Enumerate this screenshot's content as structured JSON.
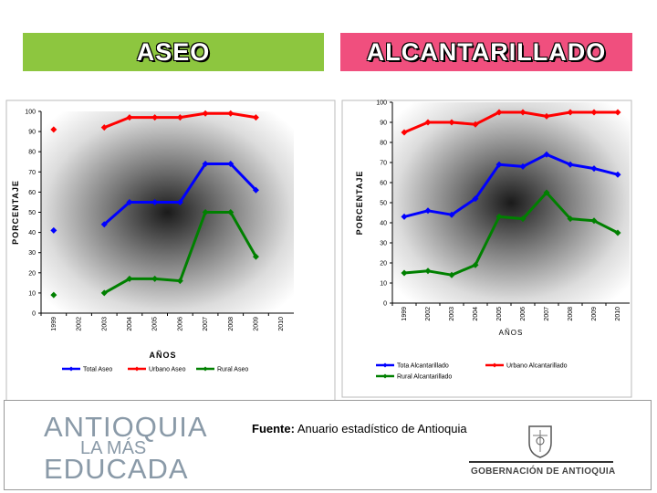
{
  "banners": {
    "left": "ASEO",
    "right": "ALCANTARILLADO"
  },
  "chart_data": [
    {
      "type": "line",
      "title": "ASEO",
      "xlabel": "AÑOS",
      "ylabel": "PORCENTAJE",
      "ylim": [
        0,
        100
      ],
      "yticks": [
        0,
        10,
        20,
        30,
        40,
        50,
        60,
        70,
        80,
        90,
        100
      ],
      "categories": [
        "1999",
        "2002",
        "2003",
        "2004",
        "2005",
        "2006",
        "2007",
        "2008",
        "2009",
        "2010"
      ],
      "series": [
        {
          "name": "Total Aseo",
          "color": "#0000ff",
          "values": [
            41,
            null,
            44,
            55,
            55,
            55,
            74,
            74,
            61,
            null
          ]
        },
        {
          "name": "Urbano Aseo",
          "color": "#ff0000",
          "values": [
            91,
            null,
            92,
            97,
            97,
            97,
            99,
            99,
            97,
            null
          ]
        },
        {
          "name": "Rural Aseo",
          "color": "#008000",
          "values": [
            9,
            null,
            10,
            17,
            17,
            16,
            50,
            50,
            28,
            null
          ]
        }
      ],
      "legend": "bottom"
    },
    {
      "type": "line",
      "title": "ALCANTARILLADO",
      "xlabel": "AÑOS",
      "ylabel": "PORCENTAJE",
      "ylim": [
        0,
        100
      ],
      "yticks": [
        0,
        10,
        20,
        30,
        40,
        50,
        60,
        70,
        80,
        90,
        100
      ],
      "categories": [
        "1999",
        "2002",
        "2003",
        "2004",
        "2005",
        "2006",
        "2007",
        "2008",
        "2009",
        "2010"
      ],
      "series": [
        {
          "name": "Tota Alcantarillado",
          "color": "#0000ff",
          "values": [
            43,
            46,
            44,
            52,
            69,
            68,
            74,
            69,
            67,
            64
          ]
        },
        {
          "name": "Urbano Alcantarillado",
          "color": "#ff0000",
          "values": [
            85,
            90,
            90,
            89,
            95,
            95,
            93,
            95,
            95,
            95
          ]
        },
        {
          "name": "Rural Alcantarillado",
          "color": "#008000",
          "values": [
            15,
            16,
            14,
            19,
            43,
            42,
            55,
            42,
            41,
            35
          ]
        }
      ],
      "legend": "bottom"
    }
  ],
  "footer": {
    "logo_line1": "ANTIOQUIA",
    "logo_line2": "LA MÁS",
    "logo_line3": "EDUCADA",
    "fuente_label": "Fuente:",
    "fuente_text": " Anuario estadístico de Antioquia",
    "gobernacion": "GOBERNACIÓN DE ANTIOQUIA"
  }
}
